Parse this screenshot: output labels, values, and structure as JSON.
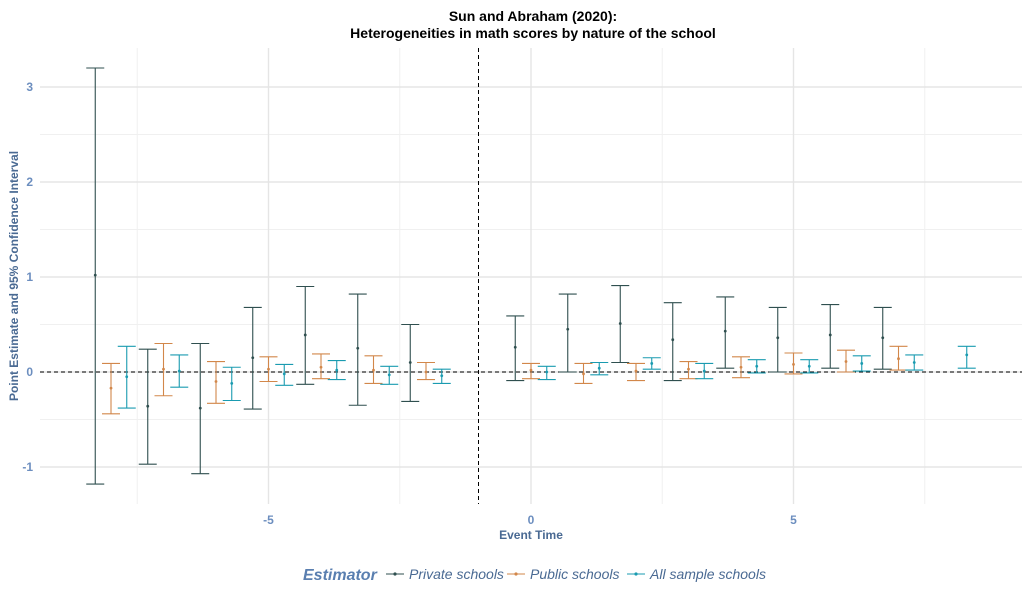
{
  "chart_data": {
    "type": "errorbar",
    "title": "Sun and Abraham (2020):",
    "subtitle": "Heterogeneities in math scores by nature of the school",
    "xlabel": "Event Time",
    "ylabel": "Point Estimate and 95% Confidence Interval",
    "xlim": [
      -9.2,
      9.4
    ],
    "ylim": [
      -1.4,
      3.35
    ],
    "xticks": [
      -5,
      0,
      5
    ],
    "xtick_labels": [
      "-5",
      "0",
      "5"
    ],
    "yticks": [
      -1,
      0,
      1,
      2,
      3
    ],
    "ytick_labels": [
      "-1",
      "0",
      "1",
      "2",
      "3"
    ],
    "reference_lines": {
      "vertical_x": -1,
      "horizontal_y": 0
    },
    "grid": true,
    "legend": {
      "title": "Estimator",
      "position": "bottom"
    },
    "series": [
      {
        "name": "Private schools",
        "color": "#2f4f4f",
        "offset": -0.3,
        "points": [
          {
            "x": -8,
            "y": 1.02,
            "lo": -1.18,
            "hi": 3.2
          },
          {
            "x": -7,
            "y": -0.36,
            "lo": -0.97,
            "hi": 0.24
          },
          {
            "x": -6,
            "y": -0.38,
            "lo": -1.07,
            "hi": 0.3
          },
          {
            "x": -5,
            "y": 0.15,
            "lo": -0.39,
            "hi": 0.68
          },
          {
            "x": -4,
            "y": 0.39,
            "lo": -0.13,
            "hi": 0.9
          },
          {
            "x": -3,
            "y": 0.25,
            "lo": -0.35,
            "hi": 0.82
          },
          {
            "x": -2,
            "y": 0.1,
            "lo": -0.31,
            "hi": 0.5
          },
          {
            "x": 0,
            "y": 0.26,
            "lo": -0.09,
            "hi": 0.59
          },
          {
            "x": 1,
            "y": 0.45,
            "lo": 0.0,
            "hi": 0.82
          },
          {
            "x": 2,
            "y": 0.51,
            "lo": 0.1,
            "hi": 0.91
          },
          {
            "x": 3,
            "y": 0.34,
            "lo": -0.09,
            "hi": 0.73
          },
          {
            "x": 4,
            "y": 0.43,
            "lo": 0.04,
            "hi": 0.79
          },
          {
            "x": 5,
            "y": 0.36,
            "lo": 0.0,
            "hi": 0.68
          },
          {
            "x": 6,
            "y": 0.39,
            "lo": 0.04,
            "hi": 0.71
          },
          {
            "x": 7,
            "y": 0.36,
            "lo": 0.03,
            "hi": 0.68
          }
        ]
      },
      {
        "name": "Public schools",
        "color": "#d2874a",
        "offset": 0.0,
        "points": [
          {
            "x": -8,
            "y": -0.17,
            "lo": -0.44,
            "hi": 0.09
          },
          {
            "x": -7,
            "y": 0.03,
            "lo": -0.25,
            "hi": 0.3
          },
          {
            "x": -6,
            "y": -0.1,
            "lo": -0.33,
            "hi": 0.11
          },
          {
            "x": -5,
            "y": 0.03,
            "lo": -0.1,
            "hi": 0.16
          },
          {
            "x": -4,
            "y": 0.05,
            "lo": -0.07,
            "hi": 0.19
          },
          {
            "x": -3,
            "y": 0.02,
            "lo": -0.12,
            "hi": 0.17
          },
          {
            "x": -2,
            "y": 0.0,
            "lo": -0.08,
            "hi": 0.1
          },
          {
            "x": 0,
            "y": 0.02,
            "lo": -0.07,
            "hi": 0.09
          },
          {
            "x": 1,
            "y": -0.02,
            "lo": -0.12,
            "hi": 0.09
          },
          {
            "x": 2,
            "y": 0.01,
            "lo": -0.09,
            "hi": 0.09
          },
          {
            "x": 3,
            "y": 0.03,
            "lo": -0.07,
            "hi": 0.11
          },
          {
            "x": 4,
            "y": 0.05,
            "lo": -0.06,
            "hi": 0.16
          },
          {
            "x": 5,
            "y": 0.08,
            "lo": -0.02,
            "hi": 0.2
          },
          {
            "x": 6,
            "y": 0.11,
            "lo": 0.0,
            "hi": 0.23
          },
          {
            "x": 7,
            "y": 0.14,
            "lo": 0.02,
            "hi": 0.27
          }
        ]
      },
      {
        "name": "All sample schools",
        "color": "#1a9bb0",
        "offset": 0.3,
        "points": [
          {
            "x": -8,
            "y": -0.05,
            "lo": -0.38,
            "hi": 0.27
          },
          {
            "x": -7,
            "y": 0.01,
            "lo": -0.16,
            "hi": 0.18
          },
          {
            "x": -6,
            "y": -0.12,
            "lo": -0.3,
            "hi": 0.05
          },
          {
            "x": -5,
            "y": -0.02,
            "lo": -0.14,
            "hi": 0.08
          },
          {
            "x": -4,
            "y": 0.02,
            "lo": -0.08,
            "hi": 0.12
          },
          {
            "x": -3,
            "y": -0.03,
            "lo": -0.13,
            "hi": 0.06
          },
          {
            "x": -2,
            "y": -0.04,
            "lo": -0.12,
            "hi": 0.03
          },
          {
            "x": 0,
            "y": 0.0,
            "lo": -0.08,
            "hi": 0.06
          },
          {
            "x": 1,
            "y": 0.04,
            "lo": -0.03,
            "hi": 0.1
          },
          {
            "x": 2,
            "y": 0.09,
            "lo": 0.03,
            "hi": 0.15
          },
          {
            "x": 3,
            "y": 0.01,
            "lo": -0.07,
            "hi": 0.09
          },
          {
            "x": 4,
            "y": 0.06,
            "lo": -0.01,
            "hi": 0.13
          },
          {
            "x": 5,
            "y": 0.06,
            "lo": -0.01,
            "hi": 0.13
          },
          {
            "x": 6,
            "y": 0.09,
            "lo": 0.01,
            "hi": 0.17
          },
          {
            "x": 7,
            "y": 0.1,
            "lo": 0.02,
            "hi": 0.18
          },
          {
            "x": 8,
            "y": 0.18,
            "lo": 0.04,
            "hi": 0.27
          }
        ]
      }
    ]
  }
}
